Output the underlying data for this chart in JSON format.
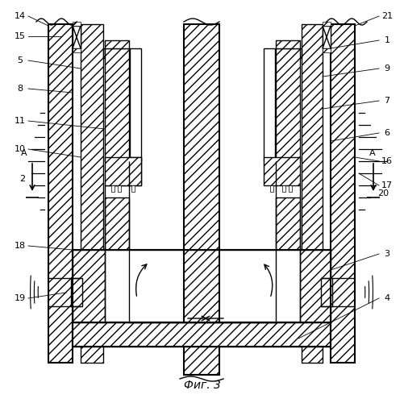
{
  "title": "Фиг. 3",
  "bg": "#ffffff",
  "lw": 1.0,
  "lw2": 1.5,
  "font_size": 8.0
}
